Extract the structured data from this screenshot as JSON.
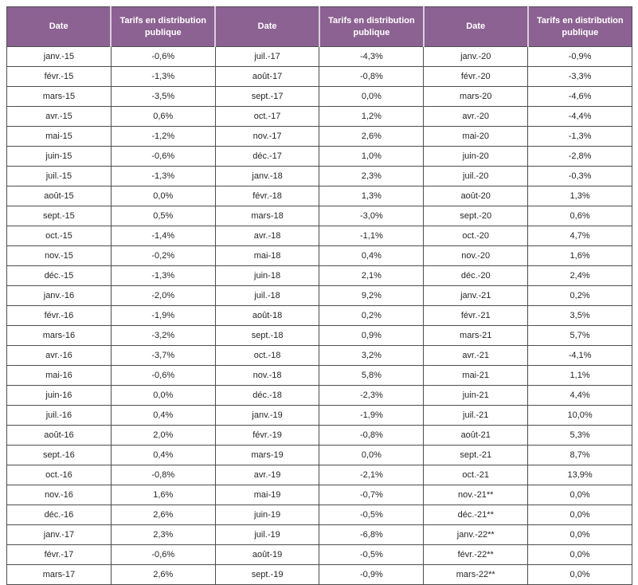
{
  "colors": {
    "header_bg": "#8C6292",
    "header_text": "#FFFFFF",
    "grid_border": "#4D4D4D",
    "header_separator": "#D9CFDB",
    "body_text": "#262626",
    "background": "#FFFFFF"
  },
  "chart_data": {
    "type": "table",
    "title": "",
    "columns": [
      "Date",
      "Tarifs en distribution publique",
      "Date",
      "Tarifs en distribution publique",
      "Date",
      "Tarifs en distribution publique"
    ],
    "header_date_label": "Date",
    "header_value_label": "Tarifs en distribution publique",
    "layout": {
      "column_groups": 3,
      "rows_per_group": 27,
      "grid": true
    },
    "groups": [
      {
        "rows": [
          {
            "date": "janv.-15",
            "value": "-0,6%"
          },
          {
            "date": "févr.-15",
            "value": "-1,3%"
          },
          {
            "date": "mars-15",
            "value": "-3,5%"
          },
          {
            "date": "avr.-15",
            "value": "0,6%"
          },
          {
            "date": "mai-15",
            "value": "-1,2%"
          },
          {
            "date": "juin-15",
            "value": "-0,6%"
          },
          {
            "date": "juil.-15",
            "value": "-1,3%"
          },
          {
            "date": "août-15",
            "value": "0,0%"
          },
          {
            "date": "sept.-15",
            "value": "0,5%"
          },
          {
            "date": "oct.-15",
            "value": "-1,4%"
          },
          {
            "date": "nov.-15",
            "value": "-0,2%"
          },
          {
            "date": "déc.-15",
            "value": "-1,3%"
          },
          {
            "date": "janv.-16",
            "value": "-2,0%"
          },
          {
            "date": "févr.-16",
            "value": "-1,9%"
          },
          {
            "date": "mars-16",
            "value": "-3,2%"
          },
          {
            "date": "avr.-16",
            "value": "-3,7%"
          },
          {
            "date": "mai-16",
            "value": "-0,6%"
          },
          {
            "date": "juin-16",
            "value": "0,0%"
          },
          {
            "date": "juil.-16",
            "value": "0,4%"
          },
          {
            "date": "août-16",
            "value": "2,0%"
          },
          {
            "date": "sept.-16",
            "value": "0,4%"
          },
          {
            "date": "oct.-16",
            "value": "-0,8%"
          },
          {
            "date": "nov.-16",
            "value": "1,6%"
          },
          {
            "date": "déc.-16",
            "value": "2,6%"
          },
          {
            "date": "janv.-17",
            "value": "2,3%"
          },
          {
            "date": "févr.-17",
            "value": "-0,6%"
          },
          {
            "date": "mars-17",
            "value": "2,6%"
          }
        ]
      },
      {
        "rows": [
          {
            "date": "juil.-17",
            "value": "-4,3%"
          },
          {
            "date": "août-17",
            "value": "-0,8%"
          },
          {
            "date": "sept.-17",
            "value": "0,0%"
          },
          {
            "date": "oct.-17",
            "value": "1,2%"
          },
          {
            "date": "nov.-17",
            "value": "2,6%"
          },
          {
            "date": "déc.-17",
            "value": "1,0%"
          },
          {
            "date": "janv.-18",
            "value": "2,3%"
          },
          {
            "date": "févr.-18",
            "value": "1,3%"
          },
          {
            "date": "mars-18",
            "value": "-3,0%"
          },
          {
            "date": "avr.-18",
            "value": "-1,1%"
          },
          {
            "date": "mai-18",
            "value": "0,4%"
          },
          {
            "date": "juin-18",
            "value": "2,1%"
          },
          {
            "date": "juil.-18",
            "value": "9,2%"
          },
          {
            "date": "août-18",
            "value": "0,2%"
          },
          {
            "date": "sept.-18",
            "value": "0,9%"
          },
          {
            "date": "oct.-18",
            "value": "3,2%"
          },
          {
            "date": "nov.-18",
            "value": "5,8%"
          },
          {
            "date": "déc.-18",
            "value": "-2,3%"
          },
          {
            "date": "janv.-19",
            "value": "-1,9%"
          },
          {
            "date": "févr.-19",
            "value": "-0,8%"
          },
          {
            "date": "mars-19",
            "value": "0,0%"
          },
          {
            "date": "avr.-19",
            "value": "-2,1%"
          },
          {
            "date": "mai-19",
            "value": "-0,7%"
          },
          {
            "date": "juin-19",
            "value": "-0,5%"
          },
          {
            "date": "juil.-19",
            "value": "-6,8%"
          },
          {
            "date": "août-19",
            "value": "-0,5%"
          },
          {
            "date": "sept.-19",
            "value": "-0,9%"
          }
        ]
      },
      {
        "rows": [
          {
            "date": "janv.-20",
            "value": "-0,9%"
          },
          {
            "date": "févr.-20",
            "value": "-3,3%"
          },
          {
            "date": "mars-20",
            "value": "-4,6%"
          },
          {
            "date": "avr.-20",
            "value": "-4,4%"
          },
          {
            "date": "mai-20",
            "value": "-1,3%"
          },
          {
            "date": "juin-20",
            "value": "-2,8%"
          },
          {
            "date": "juil.-20",
            "value": "-0,3%"
          },
          {
            "date": "août-20",
            "value": "1,3%"
          },
          {
            "date": "sept.-20",
            "value": "0,6%"
          },
          {
            "date": "oct.-20",
            "value": "4,7%"
          },
          {
            "date": "nov.-20",
            "value": "1,6%"
          },
          {
            "date": "déc.-20",
            "value": "2,4%"
          },
          {
            "date": "janv.-21",
            "value": "0,2%"
          },
          {
            "date": "févr.-21",
            "value": "3,5%"
          },
          {
            "date": "mars-21",
            "value": "5,7%"
          },
          {
            "date": "avr.-21",
            "value": "-4,1%"
          },
          {
            "date": "mai-21",
            "value": "1,1%"
          },
          {
            "date": "juin-21",
            "value": "4,4%"
          },
          {
            "date": "juil.-21",
            "value": "10,0%"
          },
          {
            "date": "août-21",
            "value": "5,3%"
          },
          {
            "date": "sept.-21",
            "value": "8,7%"
          },
          {
            "date": "oct.-21",
            "value": "13,9%"
          },
          {
            "date": "nov.-21**",
            "value": "0,0%"
          },
          {
            "date": "déc.-21**",
            "value": "0,0%"
          },
          {
            "date": "janv.-22**",
            "value": "0,0%"
          },
          {
            "date": "févr.-22**",
            "value": "0,0%"
          },
          {
            "date": "mars-22**",
            "value": "0,0%"
          }
        ]
      }
    ]
  }
}
